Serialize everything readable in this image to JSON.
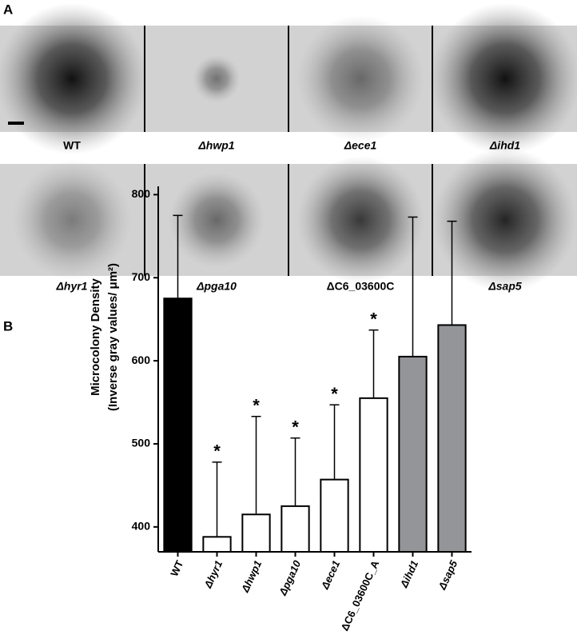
{
  "panel_a": {
    "label": "A",
    "images": [
      {
        "caption": "WT",
        "italic": false
      },
      {
        "caption": "Δhwp1",
        "italic": true
      },
      {
        "caption": "Δece1",
        "italic": true
      },
      {
        "caption": "Δihd1",
        "italic": true
      },
      {
        "caption": "Δhyr1",
        "italic": true
      },
      {
        "caption": "Δpga10",
        "italic": true
      },
      {
        "caption": "ΔC6_03600C",
        "italic": false
      },
      {
        "caption": "Δsap5",
        "italic": true
      }
    ]
  },
  "chart_data": {
    "type": "bar",
    "panel_label": "B",
    "ylabel": [
      "Microcolony Density",
      "(Inverse gray values/ μm²)"
    ],
    "categories": [
      "WT",
      "Δhyr1",
      "Δhwp1",
      "Δpga10",
      "Δece1",
      "ΔC6_03600C_A",
      "Δihd1",
      "Δsap5"
    ],
    "category_italic": [
      false,
      true,
      true,
      true,
      true,
      false,
      true,
      true
    ],
    "values": [
      675,
      388,
      415,
      425,
      457,
      555,
      605,
      643
    ],
    "errors": [
      100,
      90,
      118,
      82,
      90,
      82,
      168,
      125
    ],
    "colors": [
      "#000000",
      "#ffffff",
      "#ffffff",
      "#ffffff",
      "#ffffff",
      "#ffffff",
      "#939598",
      "#939598"
    ],
    "annotations": [
      null,
      "*",
      "*",
      "*",
      "*",
      "*",
      null,
      null
    ],
    "ylim": [
      370,
      810
    ],
    "yticks": [
      400,
      500,
      600,
      700,
      800
    ]
  }
}
